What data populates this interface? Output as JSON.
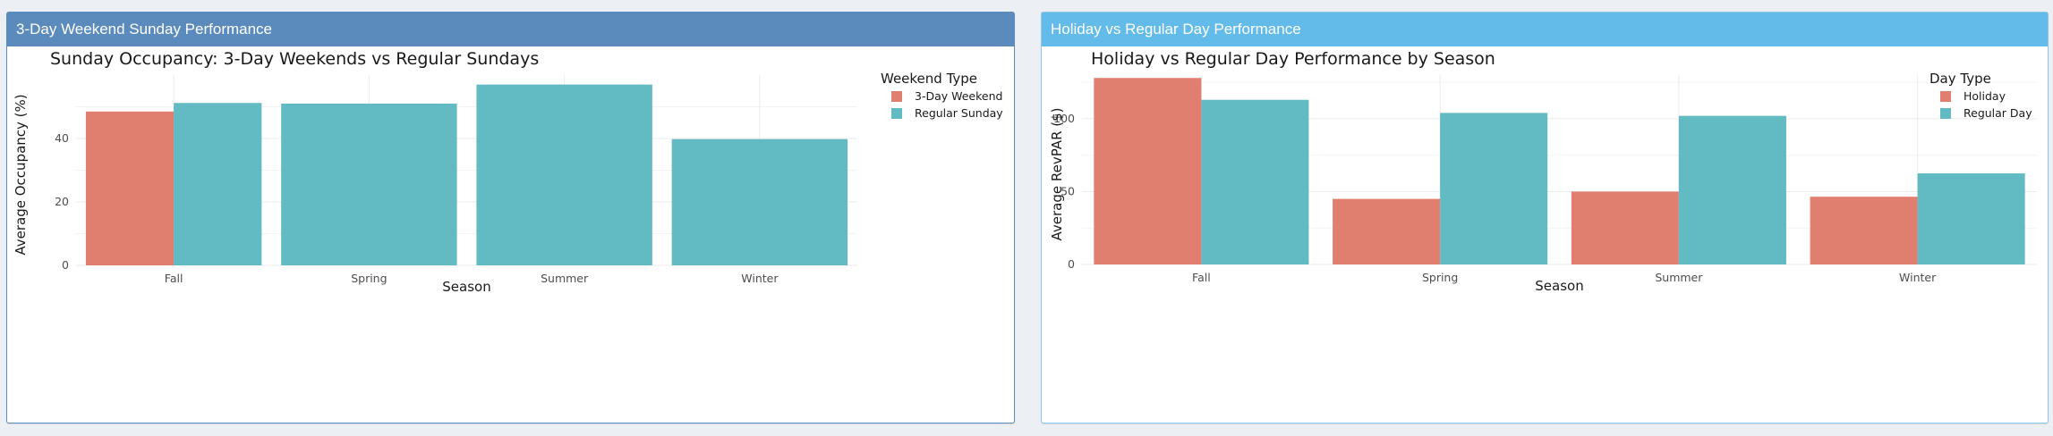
{
  "panels": [
    {
      "header": "3-Day Weekend Sunday Performance"
    },
    {
      "header": "Holiday vs Regular Day Performance"
    }
  ],
  "chart_data": [
    {
      "type": "bar",
      "title": "Sunday Occupancy: 3-Day Weekends vs Regular Sundays",
      "xlabel": "Season",
      "ylabel": "Average Occupancy (%)",
      "categories": [
        "Fall",
        "Spring",
        "Summer",
        "Winter"
      ],
      "ylim": [
        0,
        60
      ],
      "yticks": [
        0,
        20,
        40
      ],
      "grid": true,
      "legend_title": "Weekend Type",
      "legend_position": "right",
      "series": [
        {
          "name": "3-Day Weekend",
          "color": "#e07f6f",
          "values": [
            48.5,
            null,
            null,
            null
          ]
        },
        {
          "name": "Regular Sunday",
          "color": "#62bac2",
          "values": [
            51.2,
            51.0,
            57.0,
            39.8
          ]
        }
      ]
    },
    {
      "type": "bar",
      "title": "Holiday vs Regular Day Performance by Season",
      "xlabel": "Season",
      "ylabel": "Average RevPAR ($)",
      "categories": [
        "Fall",
        "Spring",
        "Summer",
        "Winter"
      ],
      "ylim": [
        0,
        130
      ],
      "yticks": [
        0,
        50,
        100
      ],
      "grid": true,
      "legend_title": "Day Type",
      "legend_position": "right",
      "series": [
        {
          "name": "Holiday",
          "color": "#e07f6f",
          "values": [
            128,
            45,
            50,
            46.5
          ]
        },
        {
          "name": "Regular Day",
          "color": "#62bac2",
          "values": [
            113,
            104,
            102,
            62.5
          ]
        }
      ]
    }
  ]
}
